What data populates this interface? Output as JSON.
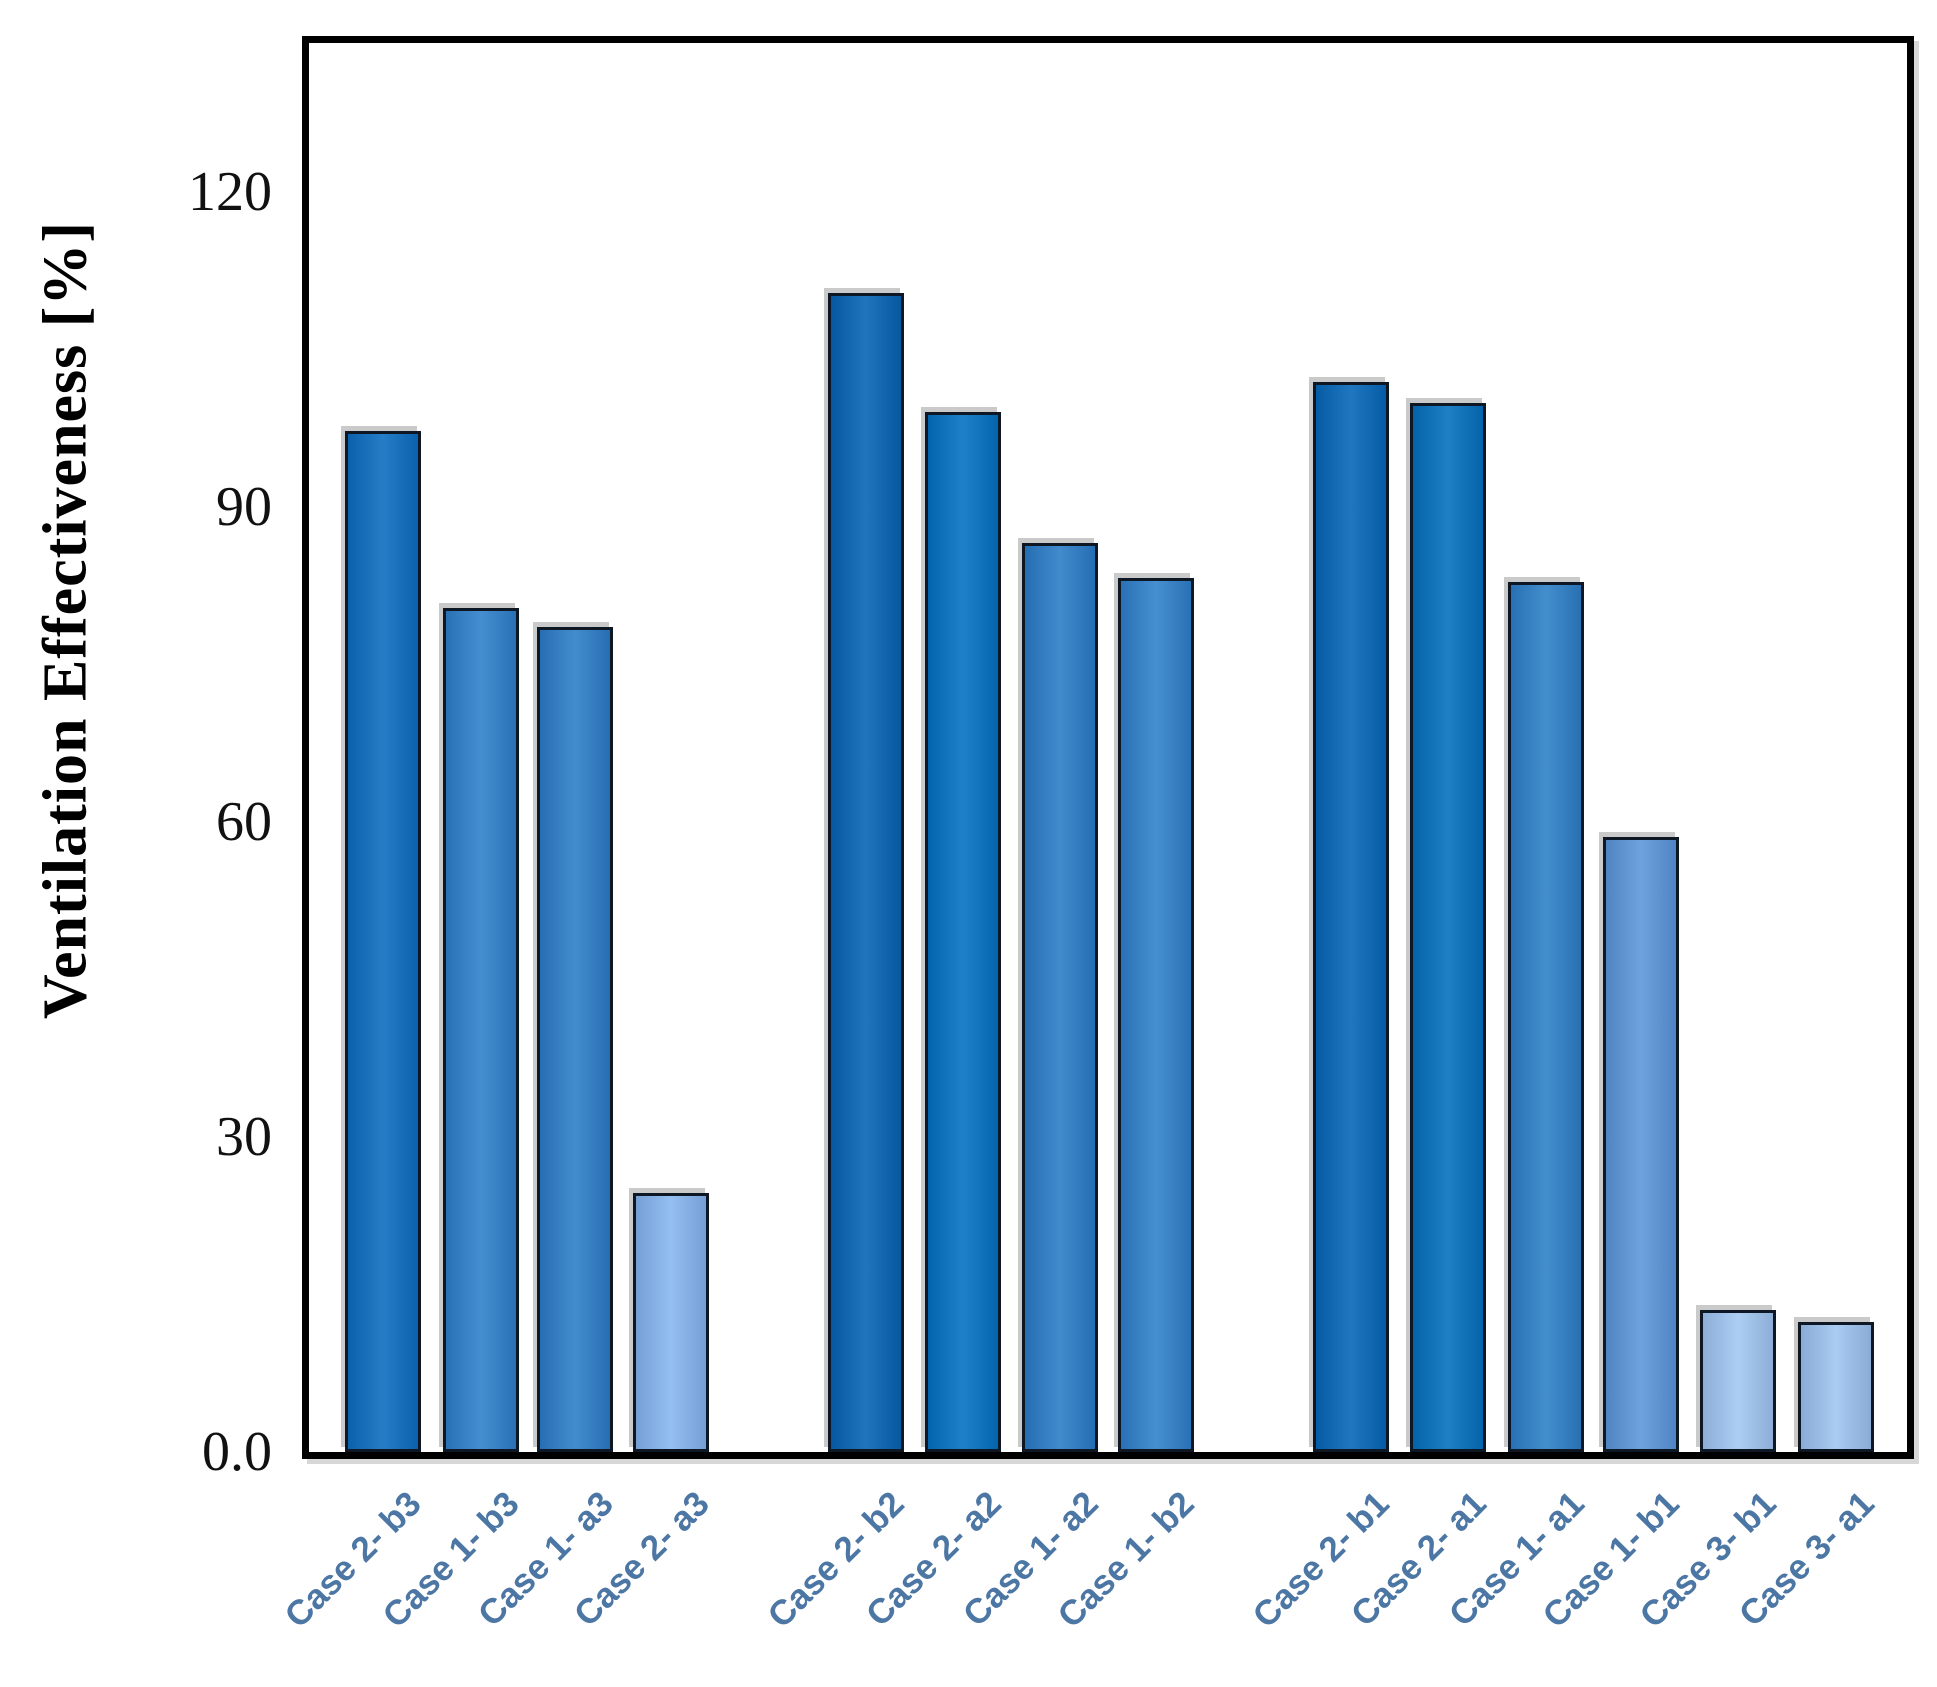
{
  "chart_data": {
    "type": "bar",
    "title": "",
    "xlabel": "",
    "ylabel": "Ventilation Effectiveness [%]",
    "ylim": [
      0,
      134
    ],
    "grid": false,
    "legend": false,
    "bar_edge_color": "#0e1724",
    "yticks": [
      {
        "value": 120,
        "label": "120"
      },
      {
        "value": 90,
        "label": "90"
      },
      {
        "value": 60,
        "label": "60"
      },
      {
        "value": 30,
        "label": "30"
      },
      {
        "value": 0,
        "label": "0.0"
      }
    ],
    "groups": [
      {
        "bars": [
          {
            "label": "Case 2- b3",
            "value": 97.2,
            "color": "#0d6fc0"
          },
          {
            "label": "Case 1- b3",
            "value": 80.4,
            "color": "#2f82cb"
          },
          {
            "label": "Case 1- a3",
            "value": 78.6,
            "color": "#2d7fc7"
          },
          {
            "label": "Case 2- a3",
            "value": 24.7,
            "color": "#88b8f1"
          }
        ]
      },
      {
        "bars": [
          {
            "label": "Case 2- b2",
            "value": 110.4,
            "color": "#0765b3"
          },
          {
            "label": "Case 2- a2",
            "value": 99.0,
            "color": "#0473c2"
          },
          {
            "label": "Case 1- a2",
            "value": 86.6,
            "color": "#2b7ec7"
          },
          {
            "label": "Case 1- b2",
            "value": 83.2,
            "color": "#3082ca"
          }
        ]
      },
      {
        "bars": [
          {
            "label": "Case 2- b1",
            "value": 101.9,
            "color": "#0768b8"
          },
          {
            "label": "Case 2- a1",
            "value": 99.9,
            "color": "#0571bd"
          },
          {
            "label": "Case 1- a1",
            "value": 82.9,
            "color": "#2e81c8"
          },
          {
            "label": "Case 1- b1",
            "value": 58.6,
            "color": "#5d98da"
          },
          {
            "label": "Case 3- b1",
            "value": 13.5,
            "color": "#a3c9f2"
          },
          {
            "label": "Case 3- a1",
            "value": 12.4,
            "color": "#a0c6f0"
          }
        ]
      }
    ]
  }
}
